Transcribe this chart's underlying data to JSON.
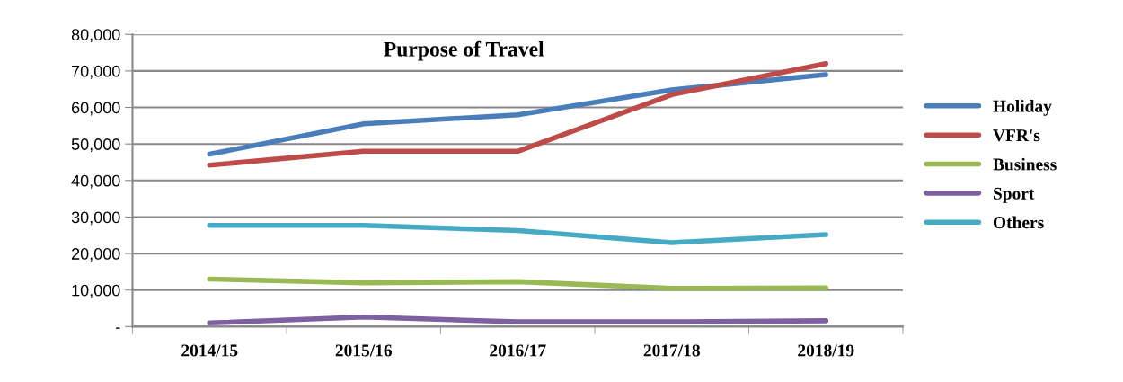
{
  "chart_data": {
    "type": "line",
    "title": "Purpose of Travel",
    "categories": [
      "2014/15",
      "2015/16",
      "2016/17",
      "2017/18",
      "2018/19"
    ],
    "series": [
      {
        "name": "Holiday",
        "color": "#4a7ebb",
        "values": [
          47200,
          55500,
          58000,
          64800,
          69000
        ]
      },
      {
        "name": "VFR's",
        "color": "#be4b48",
        "values": [
          44200,
          48000,
          48000,
          63500,
          72000
        ]
      },
      {
        "name": "Business",
        "color": "#98b954",
        "values": [
          13000,
          12000,
          12300,
          10500,
          10600
        ]
      },
      {
        "name": "Sport",
        "color": "#7d60a0",
        "values": [
          1000,
          2600,
          1300,
          1300,
          1600
        ]
      },
      {
        "name": "Others",
        "color": "#46aac5",
        "values": [
          27700,
          27700,
          26300,
          23000,
          25200
        ]
      }
    ],
    "ylim": [
      0,
      80000
    ],
    "yticks": [
      {
        "value": 0,
        "label": "-"
      },
      {
        "value": 10000,
        "label": "10,000"
      },
      {
        "value": 20000,
        "label": "20,000"
      },
      {
        "value": 30000,
        "label": "30,000"
      },
      {
        "value": 40000,
        "label": "40,000"
      },
      {
        "value": 50000,
        "label": "50,000"
      },
      {
        "value": 60000,
        "label": "60,000"
      },
      {
        "value": 70000,
        "label": "70,000"
      },
      {
        "value": 80000,
        "label": "80,000"
      }
    ],
    "grid": "y",
    "legend": "right",
    "marker": "none",
    "line_style": "solid"
  }
}
